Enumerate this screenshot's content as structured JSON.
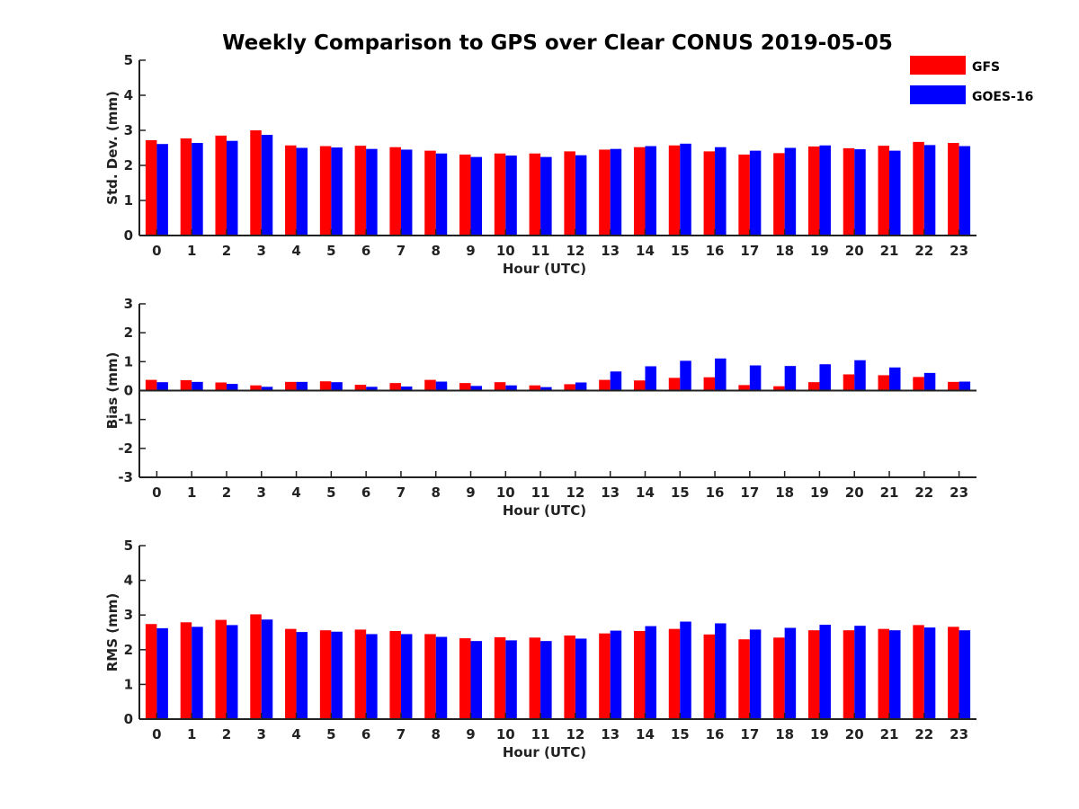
{
  "figure_title": "Weekly Comparison to GPS over Clear CONUS 2019-05-05",
  "colors": {
    "GFS": "#ff0000",
    "GOES-16": "#0000ff"
  },
  "legend": {
    "placement": "top-right",
    "entries": [
      "GFS",
      "GOES-16"
    ]
  },
  "chart_data": [
    {
      "type": "bar",
      "title": "Weekly Comparison to GPS over Clear CONUS 2019-05-05",
      "xlabel": "Hour (UTC)",
      "ylabel": "Std. Dev. (mm)",
      "ylim": [
        0,
        5
      ],
      "yticks": [
        0,
        1,
        2,
        3,
        4,
        5
      ],
      "grid": false,
      "categories": [
        "0",
        "1",
        "2",
        "3",
        "4",
        "5",
        "6",
        "7",
        "8",
        "9",
        "10",
        "11",
        "12",
        "13",
        "14",
        "15",
        "16",
        "17",
        "18",
        "19",
        "20",
        "21",
        "22",
        "23"
      ],
      "series": [
        {
          "name": "GFS",
          "values": [
            2.72,
            2.77,
            2.85,
            3.0,
            2.57,
            2.55,
            2.56,
            2.52,
            2.42,
            2.31,
            2.34,
            2.34,
            2.4,
            2.45,
            2.52,
            2.57,
            2.4,
            2.31,
            2.35,
            2.54,
            2.49,
            2.56,
            2.67,
            2.64
          ]
        },
        {
          "name": "GOES-16",
          "values": [
            2.61,
            2.64,
            2.7,
            2.87,
            2.5,
            2.51,
            2.47,
            2.45,
            2.34,
            2.24,
            2.28,
            2.24,
            2.29,
            2.47,
            2.55,
            2.62,
            2.52,
            2.42,
            2.5,
            2.57,
            2.46,
            2.42,
            2.58,
            2.55
          ]
        }
      ]
    },
    {
      "type": "bar",
      "xlabel": "Hour (UTC)",
      "ylabel": "Bias (mm)",
      "ylim": [
        -3,
        3
      ],
      "yticks": [
        -3,
        -2,
        -1,
        0,
        1,
        2,
        3
      ],
      "grid": false,
      "categories": [
        "0",
        "1",
        "2",
        "3",
        "4",
        "5",
        "6",
        "7",
        "8",
        "9",
        "10",
        "11",
        "12",
        "13",
        "14",
        "15",
        "16",
        "17",
        "18",
        "19",
        "20",
        "21",
        "22",
        "23"
      ],
      "series": [
        {
          "name": "GFS",
          "values": [
            0.37,
            0.36,
            0.28,
            0.18,
            0.3,
            0.32,
            0.2,
            0.26,
            0.37,
            0.26,
            0.29,
            0.18,
            0.22,
            0.37,
            0.35,
            0.44,
            0.46,
            0.19,
            0.15,
            0.29,
            0.56,
            0.53,
            0.47,
            0.3
          ]
        },
        {
          "name": "GOES-16",
          "values": [
            0.29,
            0.3,
            0.23,
            0.13,
            0.3,
            0.29,
            0.13,
            0.14,
            0.31,
            0.16,
            0.18,
            0.12,
            0.28,
            0.66,
            0.84,
            1.03,
            1.11,
            0.87,
            0.85,
            0.91,
            1.05,
            0.8,
            0.61,
            0.31
          ]
        }
      ]
    },
    {
      "type": "bar",
      "xlabel": "Hour (UTC)",
      "ylabel": "RMS (mm)",
      "ylim": [
        0,
        5
      ],
      "yticks": [
        0,
        1,
        2,
        3,
        4,
        5
      ],
      "grid": false,
      "categories": [
        "0",
        "1",
        "2",
        "3",
        "4",
        "5",
        "6",
        "7",
        "8",
        "9",
        "10",
        "11",
        "12",
        "13",
        "14",
        "15",
        "16",
        "17",
        "18",
        "19",
        "20",
        "21",
        "22",
        "23"
      ],
      "series": [
        {
          "name": "GFS",
          "values": [
            2.74,
            2.79,
            2.86,
            3.02,
            2.6,
            2.56,
            2.58,
            2.54,
            2.45,
            2.33,
            2.36,
            2.35,
            2.41,
            2.47,
            2.54,
            2.6,
            2.44,
            2.3,
            2.35,
            2.56,
            2.56,
            2.6,
            2.71,
            2.66
          ]
        },
        {
          "name": "GOES-16",
          "values": [
            2.62,
            2.66,
            2.71,
            2.87,
            2.51,
            2.52,
            2.45,
            2.45,
            2.37,
            2.25,
            2.27,
            2.25,
            2.32,
            2.55,
            2.68,
            2.81,
            2.76,
            2.58,
            2.63,
            2.72,
            2.69,
            2.56,
            2.64,
            2.56
          ]
        }
      ]
    }
  ]
}
